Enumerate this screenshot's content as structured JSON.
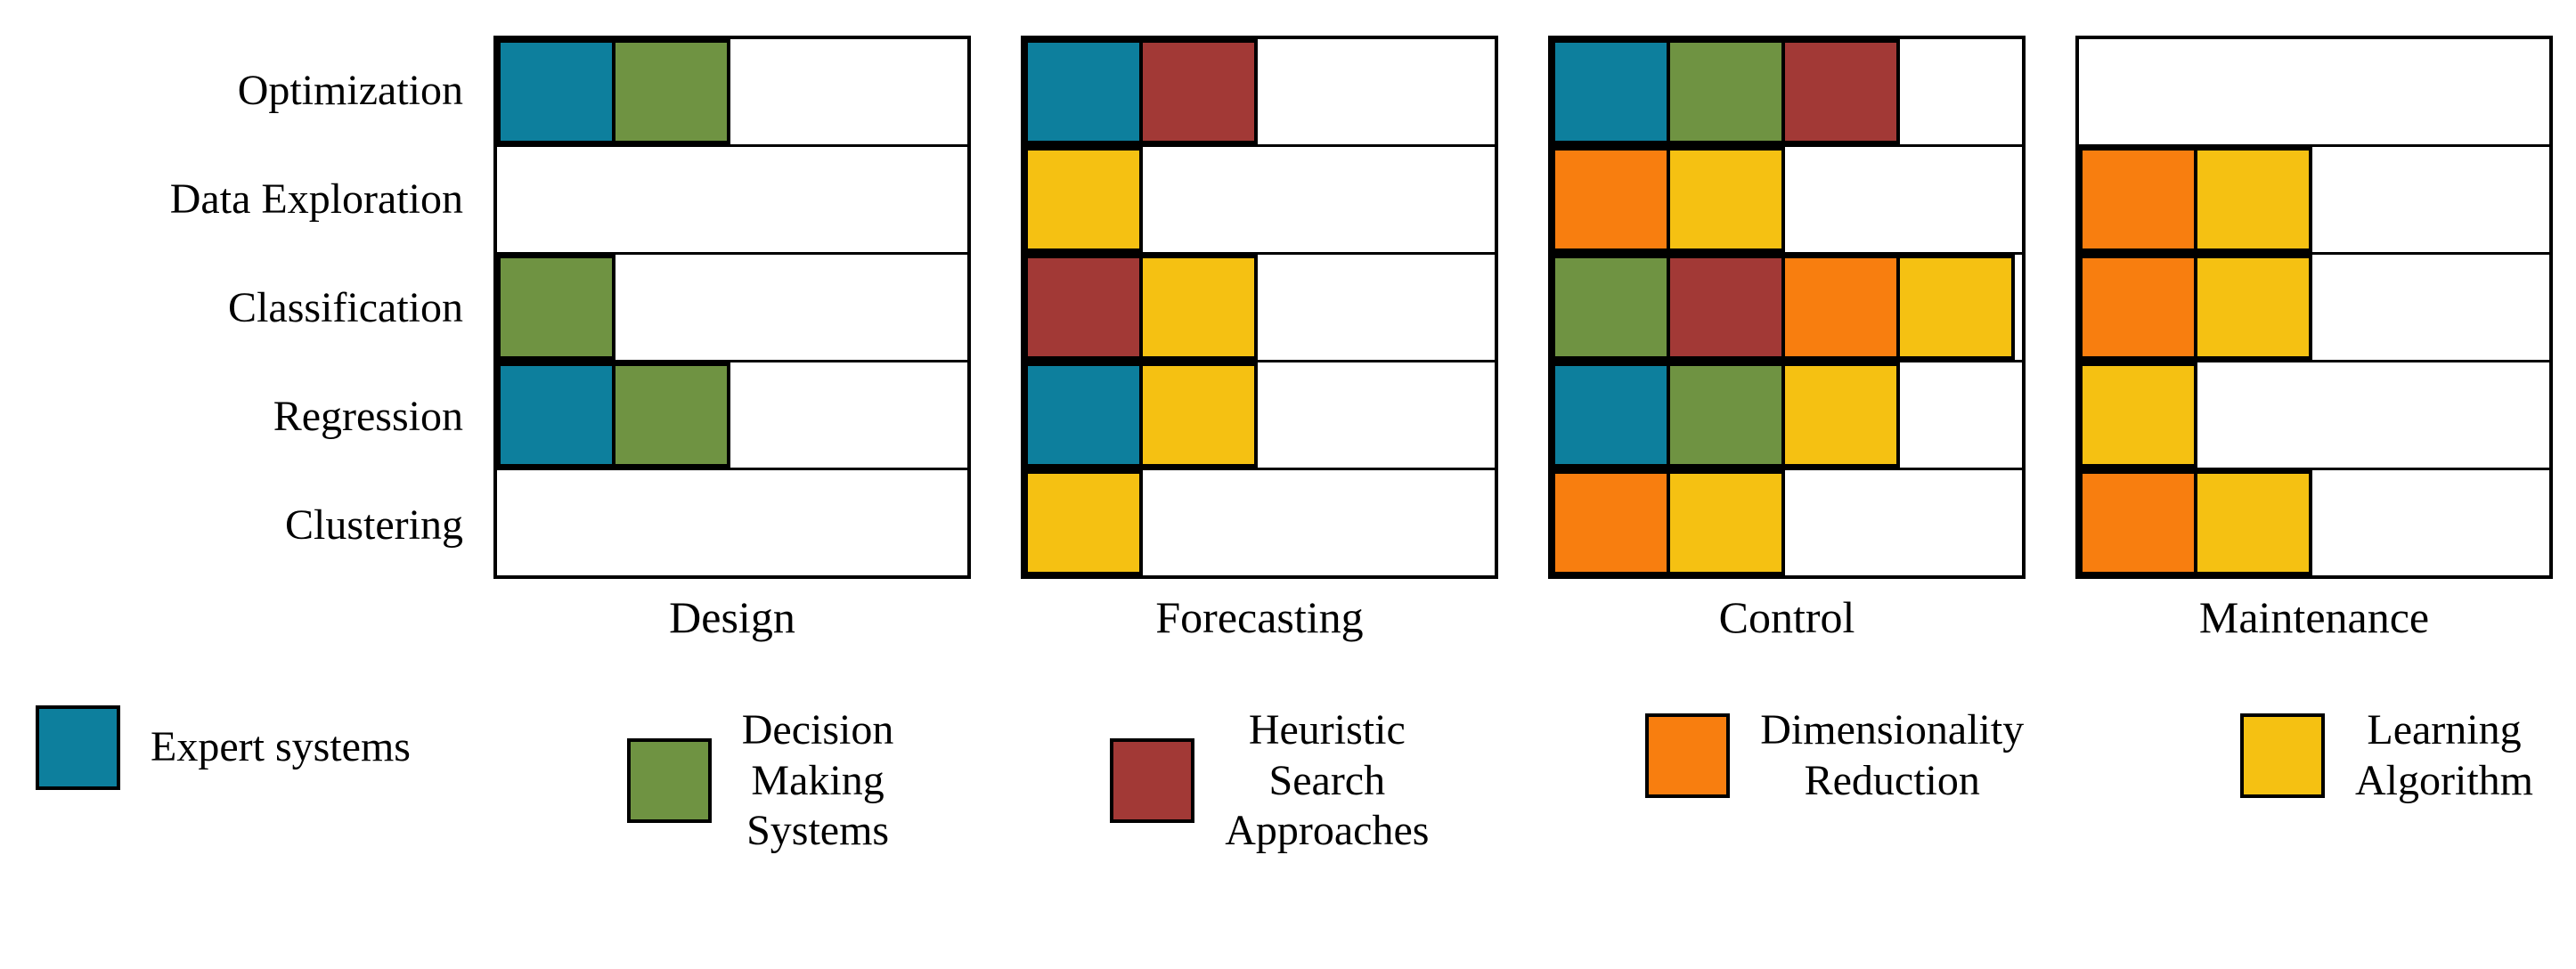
{
  "chart_data": {
    "type": "matrix",
    "title": "",
    "rows": [
      "Optimization",
      "Data Exploration",
      "Classification",
      "Regression",
      "Clustering"
    ],
    "columns": [
      "Design",
      "Forecasting",
      "Control",
      "Maintenance"
    ],
    "categories": {
      "expert": {
        "label": "Expert systems",
        "color": "#0d7f9d"
      },
      "decision": {
        "label": "Decision Making Systems",
        "color": "#6f9342"
      },
      "heuristic": {
        "label": "Heuristic Search Approaches",
        "color": "#a23936"
      },
      "dimred": {
        "label": "Dimensionality Reduction",
        "color": "#f87e0f"
      },
      "learning": {
        "label": "Learning Algorithm",
        "color": "#f5c112"
      }
    },
    "legend_order": [
      "expert",
      "decision",
      "heuristic",
      "dimred",
      "learning"
    ],
    "legend_labels_multiline": {
      "expert": "Expert systems",
      "decision": "Decision\nMaking\nSystems",
      "heuristic": "Heuristic\nSearch\nApproaches",
      "dimred": "Dimensionality\nReduction",
      "learning": "Learning\nAlgorithm"
    },
    "cells": {
      "Design": {
        "Optimization": [
          "expert",
          "decision"
        ],
        "Data Exploration": [],
        "Classification": [
          "decision"
        ],
        "Regression": [
          "expert",
          "decision"
        ],
        "Clustering": []
      },
      "Forecasting": {
        "Optimization": [
          "expert",
          "heuristic"
        ],
        "Data Exploration": [
          "learning"
        ],
        "Classification": [
          "heuristic",
          "learning"
        ],
        "Regression": [
          "expert",
          "learning"
        ],
        "Clustering": [
          "learning"
        ]
      },
      "Control": {
        "Optimization": [
          "expert",
          "decision",
          "heuristic"
        ],
        "Data Exploration": [
          "dimred",
          "learning"
        ],
        "Classification": [
          "decision",
          "heuristic",
          "dimred",
          "learning"
        ],
        "Regression": [
          "expert",
          "decision",
          "learning"
        ],
        "Clustering": [
          "dimred",
          "learning"
        ]
      },
      "Maintenance": {
        "Optimization": [],
        "Data Exploration": [
          "dimred",
          "learning"
        ],
        "Classification": [
          "dimred",
          "learning"
        ],
        "Regression": [
          "learning"
        ],
        "Clustering": [
          "dimred",
          "learning"
        ]
      }
    },
    "layout": {
      "grid": "5 rows x 4 panels, up to 4 cells per row, filled left to right",
      "legend_position": "bottom"
    }
  }
}
